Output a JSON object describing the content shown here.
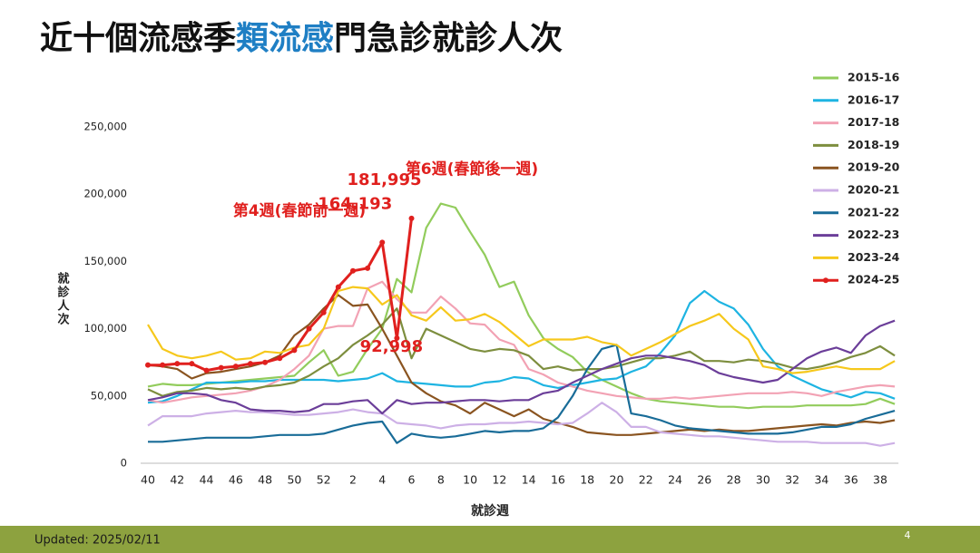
{
  "chart_data": {
    "type": "line",
    "title_segments": [
      {
        "text": "近十個流感季",
        "color": "#111111"
      },
      {
        "text": "類流感",
        "color": "#1f7fc4"
      },
      {
        "text": "門急診就診人次",
        "color": "#111111"
      }
    ],
    "x_label": "就診週",
    "y_label": "就診人次",
    "annotations": [
      "第4週(春節前一週)",
      "第6週(春節後一週)"
    ],
    "footer": "Updated: 2025/02/11",
    "page_number": "4",
    "categories": [
      "40",
      null,
      "42",
      null,
      "44",
      null,
      "46",
      null,
      "48",
      null,
      "50",
      null,
      "52",
      null,
      "2",
      null,
      "4",
      null,
      "6",
      null,
      "8",
      null,
      "10",
      null,
      "12",
      null,
      "14",
      null,
      "16",
      null,
      "18",
      null,
      "20",
      null,
      "22",
      null,
      "24",
      null,
      "26",
      null,
      "28",
      null,
      "30",
      null,
      "32",
      null,
      "34",
      null,
      "36",
      null,
      "38",
      null
    ],
    "ylim": [
      0,
      250000
    ],
    "yticks": [
      0,
      {
        "value": 50000,
        "label": "50,000"
      },
      {
        "value": 100000,
        "label": "100,000"
      },
      {
        "value": 150000,
        "label": "150,000"
      },
      {
        "value": 200000,
        "label": "200,000"
      },
      {
        "value": 250000,
        "label": "250,000"
      }
    ],
    "grid": false,
    "legend": "right",
    "series": [
      {
        "name": "2015-16",
        "color": "#92cc5c",
        "values": [
          57000,
          59000,
          58000,
          58000,
          59000,
          60000,
          61000,
          62000,
          63000,
          64000,
          65000,
          75000,
          84000,
          65000,
          68000,
          85000,
          100000,
          137000,
          127000,
          175000,
          193000,
          190000,
          172000,
          155000,
          131000,
          135000,
          110000,
          93000,
          85000,
          79000,
          68000,
          62000,
          57000,
          52000,
          48000,
          46000,
          45000,
          44000,
          43000,
          42000,
          42000,
          41000,
          42000,
          42000,
          42000,
          43000,
          43000,
          43000,
          43000,
          44000,
          48000,
          44000
        ]
      },
      {
        "name": "2016-17",
        "color": "#1eb4e2",
        "values": [
          45000,
          46000,
          50000,
          55000,
          60000,
          60000,
          60000,
          61000,
          61000,
          62000,
          62000,
          62000,
          62000,
          61000,
          62000,
          63000,
          67000,
          61000,
          60000,
          59000,
          58000,
          57000,
          57000,
          60000,
          61000,
          64000,
          63000,
          58000,
          56000,
          58000,
          60000,
          62000,
          63000,
          68000,
          72000,
          82000,
          95000,
          119000,
          128000,
          120000,
          115000,
          103000,
          85000,
          72000,
          65000,
          60000,
          55000,
          52000,
          49000,
          53000,
          52000,
          48000
        ]
      },
      {
        "name": "2017-18",
        "color": "#f2a2b4",
        "values": [
          47000,
          45000,
          47000,
          49000,
          50000,
          51000,
          52000,
          54000,
          57000,
          62000,
          70000,
          80000,
          100000,
          102000,
          102000,
          130000,
          135000,
          122000,
          112000,
          112000,
          124000,
          115000,
          104000,
          103000,
          92000,
          88000,
          70000,
          66000,
          60000,
          57000,
          54000,
          52000,
          50000,
          49000,
          48000,
          48000,
          49000,
          48000,
          49000,
          50000,
          51000,
          52000,
          52000,
          52000,
          53000,
          52000,
          50000,
          53000,
          55000,
          57000,
          58000,
          57000
        ]
      },
      {
        "name": "2018-19",
        "color": "#7d8e3e",
        "values": [
          55000,
          50000,
          53000,
          54000,
          56000,
          55000,
          56000,
          55000,
          57000,
          58000,
          60000,
          65000,
          72000,
          78000,
          88000,
          95000,
          103000,
          115000,
          78000,
          100000,
          95000,
          90000,
          85000,
          83000,
          85000,
          84000,
          80000,
          70000,
          72000,
          69000,
          70000,
          70000,
          72000,
          75000,
          78000,
          78000,
          80000,
          83000,
          76000,
          76000,
          75000,
          77000,
          76000,
          74000,
          71000,
          70000,
          72000,
          75000,
          79000,
          82000,
          87000,
          80000
        ]
      },
      {
        "name": "2019-20",
        "color": "#8a5420",
        "values": [
          73000,
          72000,
          70000,
          63000,
          67000,
          68000,
          70000,
          72000,
          75000,
          80000,
          95000,
          103000,
          115000,
          125000,
          117000,
          118000,
          100000,
          80000,
          60000,
          52000,
          46000,
          43000,
          37000,
          45000,
          40000,
          35000,
          40000,
          33000,
          30000,
          27000,
          23000,
          22000,
          21000,
          21000,
          22000,
          23000,
          24000,
          25000,
          24000,
          25000,
          24000,
          24000,
          25000,
          26000,
          27000,
          28000,
          29000,
          28000,
          30000,
          31000,
          30000,
          32000
        ]
      },
      {
        "name": "2020-21",
        "color": "#cdb0e6",
        "values": [
          28000,
          35000,
          35000,
          35000,
          37000,
          38000,
          39000,
          38000,
          38000,
          37000,
          36000,
          36000,
          37000,
          38000,
          40000,
          38000,
          37000,
          30000,
          29000,
          28000,
          26000,
          28000,
          29000,
          29000,
          30000,
          30000,
          31000,
          30000,
          29000,
          30000,
          37000,
          45000,
          38000,
          27000,
          27000,
          23000,
          22000,
          21000,
          20000,
          20000,
          19000,
          18000,
          17000,
          16000,
          16000,
          16000,
          15000,
          15000,
          15000,
          15000,
          13000,
          15000
        ]
      },
      {
        "name": "2021-22",
        "color": "#196c98",
        "values": [
          16000,
          16000,
          17000,
          18000,
          19000,
          19000,
          19000,
          19000,
          20000,
          21000,
          21000,
          21000,
          22000,
          25000,
          28000,
          30000,
          31000,
          15000,
          22000,
          20000,
          19000,
          20000,
          22000,
          24000,
          23000,
          24000,
          24000,
          26000,
          34000,
          50000,
          70000,
          85000,
          88000,
          37000,
          35000,
          32000,
          28000,
          26000,
          25000,
          24000,
          23000,
          22000,
          22000,
          22000,
          23000,
          25000,
          27000,
          27000,
          29000,
          33000,
          36000,
          39000
        ]
      },
      {
        "name": "2022-23",
        "color": "#6b3e99",
        "values": [
          47000,
          49000,
          52000,
          52000,
          51000,
          47000,
          45000,
          40000,
          39000,
          39000,
          38000,
          39000,
          44000,
          44000,
          46000,
          47000,
          37000,
          47000,
          44000,
          45000,
          45000,
          46000,
          47000,
          47000,
          46000,
          47000,
          47000,
          52000,
          54000,
          60000,
          65000,
          70000,
          74000,
          78000,
          80000,
          80000,
          78000,
          76000,
          73000,
          67000,
          64000,
          62000,
          60000,
          62000,
          70000,
          78000,
          83000,
          86000,
          82000,
          95000,
          102000,
          106000
        ]
      },
      {
        "name": "2023-24",
        "color": "#f6c81c",
        "values": [
          103000,
          85000,
          80000,
          78000,
          80000,
          83000,
          77000,
          78000,
          83000,
          82000,
          86000,
          88000,
          100000,
          128000,
          131000,
          130000,
          118000,
          125000,
          110000,
          106000,
          116000,
          106000,
          107000,
          111000,
          105000,
          96000,
          87000,
          92000,
          92000,
          92000,
          94000,
          90000,
          88000,
          80000,
          85000,
          90000,
          96000,
          102000,
          106000,
          111000,
          100000,
          92000,
          72000,
          70000,
          67000,
          68000,
          70000,
          72000,
          70000,
          70000,
          70000,
          76000
        ]
      },
      {
        "name": "2024-25",
        "color": "#e0201e",
        "markers": true,
        "values": [
          73000,
          73000,
          74000,
          74000,
          69000,
          71000,
          72000,
          74000,
          75000,
          78000,
          84000,
          100000,
          112000,
          131000,
          143000,
          145000,
          164193,
          92998,
          181995,
          null,
          null,
          null,
          null,
          null,
          null,
          null,
          null,
          null,
          null,
          null,
          null,
          null,
          null,
          null,
          null,
          null,
          null,
          null,
          null,
          null,
          null,
          null,
          null,
          null,
          null,
          null,
          null,
          null,
          null,
          null,
          null,
          null
        ],
        "value_labels": [
          null,
          null,
          null,
          null,
          null,
          null,
          null,
          null,
          null,
          null,
          null,
          null,
          null,
          null,
          null,
          null,
          "164,193",
          "92,998",
          "181,995",
          null,
          null,
          null,
          null,
          null,
          null,
          null,
          null,
          null,
          null,
          null,
          null,
          null,
          null,
          null,
          null,
          null,
          null,
          null,
          null,
          null,
          null,
          null,
          null,
          null,
          null,
          null,
          null,
          null,
          null,
          null,
          null,
          null
        ]
      }
    ]
  }
}
